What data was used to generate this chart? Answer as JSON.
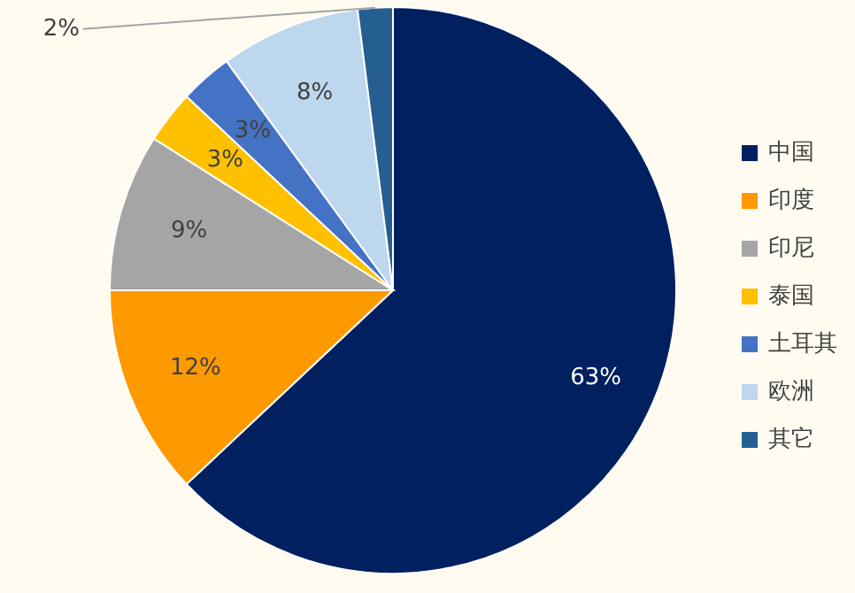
{
  "chart_data": {
    "type": "pie",
    "categories": [
      "中国",
      "印度",
      "印尼",
      "泰国",
      "土耳其",
      "欧洲",
      "其它"
    ],
    "values": [
      63,
      12,
      9,
      3,
      3,
      8,
      2
    ],
    "value_labels": [
      "63%",
      "12%",
      "9%",
      "3%",
      "3%",
      "8%",
      "2%"
    ],
    "colors": [
      "#002060",
      "#ff9900",
      "#a5a5a5",
      "#ffc000",
      "#4472c4",
      "#bdd7ee",
      "#255e91"
    ],
    "legend": "right"
  }
}
